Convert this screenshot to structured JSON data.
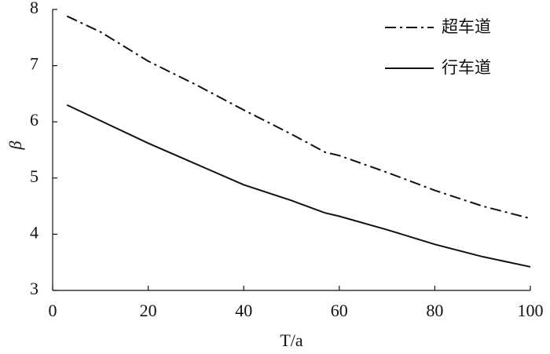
{
  "chart_data": {
    "type": "line",
    "xlabel": "T/a",
    "ylabel": "β",
    "xlim": [
      0,
      100
    ],
    "xticks": [
      0,
      20,
      40,
      60,
      80,
      100
    ],
    "ylim": [
      3,
      8
    ],
    "yticks": [
      3,
      4,
      5,
      6,
      7,
      8
    ],
    "legend": "upper right",
    "x": [
      3,
      10,
      20,
      30,
      40,
      50,
      57,
      60,
      70,
      80,
      90,
      100
    ],
    "series": [
      {
        "name": "超车道",
        "color": "#111111",
        "dash": "dashdot",
        "values": [
          7.88,
          7.6,
          7.08,
          6.66,
          6.21,
          5.78,
          5.46,
          5.4,
          5.1,
          4.78,
          4.5,
          4.28
        ]
      },
      {
        "name": "行车道",
        "color": "#111111",
        "dash": "solid",
        "values": [
          6.3,
          6.02,
          5.62,
          5.25,
          4.88,
          4.6,
          4.38,
          4.32,
          4.08,
          3.82,
          3.6,
          3.42
        ]
      }
    ]
  }
}
